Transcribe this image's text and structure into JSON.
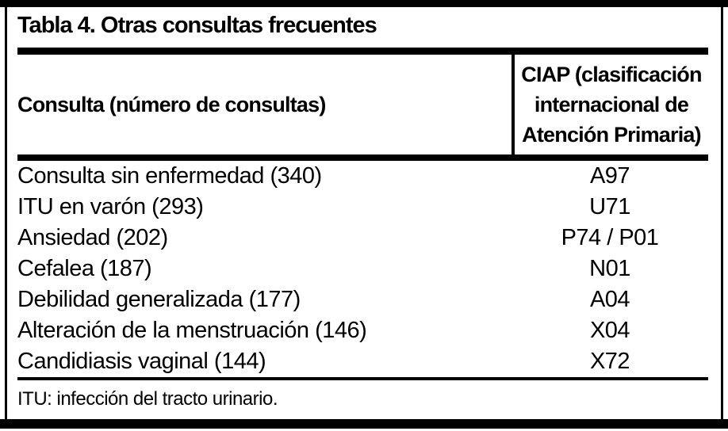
{
  "document": {
    "table": {
      "title": "Tabla 4. Otras consultas frecuentes",
      "header": {
        "consulta": "Consulta (número de consultas)",
        "ciap_lines": [
          "CIAP (clasificación",
          "internacional de",
          "Atención Primaria)"
        ]
      },
      "rows": [
        {
          "consulta": "Consulta sin enfermedad (340)",
          "ciap": "A97"
        },
        {
          "consulta": "ITU en varón (293)",
          "ciap": "U71"
        },
        {
          "consulta": "Ansiedad (202)",
          "ciap": "P74 / P01"
        },
        {
          "consulta": "Cefalea (187)",
          "ciap": "N01"
        },
        {
          "consulta": "Debilidad generalizada (177)",
          "ciap": "A04"
        },
        {
          "consulta": "Alteración de la menstruación (146)",
          "ciap": "X04"
        },
        {
          "consulta": "Candidiasis vaginal (144)",
          "ciap": "X72"
        }
      ],
      "footnote": "ITU: infección del tracto urinario.",
      "colors": {
        "text": "#000000",
        "background": "#ffffff",
        "rule": "#000000"
      }
    }
  }
}
